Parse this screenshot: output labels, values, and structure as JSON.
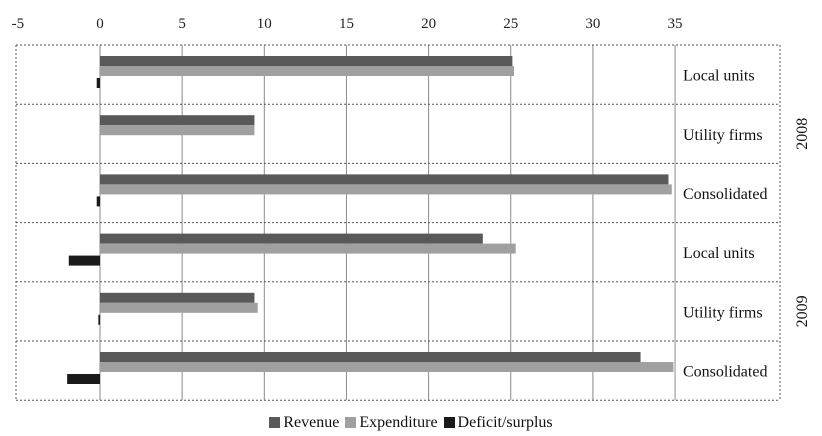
{
  "chart_data": {
    "type": "bar",
    "orientation": "horizontal",
    "xlim": [
      -5,
      35
    ],
    "x_ticks": [
      "-5",
      "0",
      "5",
      "10",
      "15",
      "20",
      "25",
      "30",
      "35"
    ],
    "grid": true,
    "legend_position": "bottom",
    "groups": [
      {
        "label": "2008",
        "categories": [
          "Local units",
          "Utility firms",
          "Consolidated"
        ]
      },
      {
        "label": "2009",
        "categories": [
          "Local units",
          "Utility firms",
          "Consolidated"
        ]
      }
    ],
    "series": [
      {
        "name": "Revenue",
        "color": "#595959",
        "values": [
          25.1,
          9.4,
          34.6,
          23.3,
          9.4,
          32.9
        ]
      },
      {
        "name": "Expenditure",
        "color": "#a0a0a0",
        "values": [
          25.2,
          9.4,
          34.8,
          25.3,
          9.6,
          34.9
        ]
      },
      {
        "name": "Deficit/surplus",
        "color": "#1a1a1a",
        "values": [
          -0.2,
          0.0,
          -0.2,
          -1.9,
          -0.1,
          -2.0
        ]
      }
    ]
  }
}
